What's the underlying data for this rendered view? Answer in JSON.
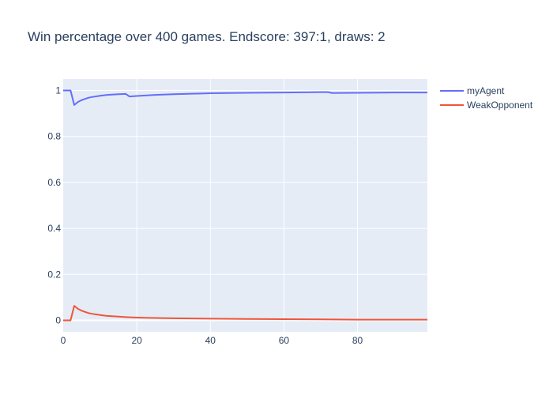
{
  "chart_data": {
    "type": "line",
    "title": "Win percentage over 400 games. Endscore: 397:1, draws: 2",
    "xlabel": "",
    "ylabel": "",
    "xlim": [
      0,
      99
    ],
    "ylim": [
      -0.05,
      1.05
    ],
    "x_ticks": [
      0,
      20,
      40,
      60,
      80
    ],
    "y_ticks": [
      0,
      0.2,
      0.4,
      0.6,
      0.8,
      1
    ],
    "y_tick_labels": [
      "0",
      "0.2",
      "0.4",
      "0.6",
      "0.8",
      "1"
    ],
    "grid": true,
    "legend_position": "top-right",
    "background": "#e5ecf6",
    "series": [
      {
        "name": "myAgent",
        "color": "#636efa",
        "x": [
          0,
          1,
          2,
          3,
          4,
          5,
          6,
          7,
          8,
          10,
          12,
          15,
          17,
          18,
          20,
          25,
          30,
          35,
          40,
          50,
          60,
          66,
          70,
          72,
          73,
          80,
          90,
          99
        ],
        "y": [
          1.0,
          1.0,
          1.0,
          0.937,
          0.95,
          0.958,
          0.964,
          0.969,
          0.972,
          0.977,
          0.981,
          0.984,
          0.985,
          0.974,
          0.976,
          0.981,
          0.984,
          0.986,
          0.988,
          0.99,
          0.991,
          0.992,
          0.993,
          0.993,
          0.989,
          0.99,
          0.991,
          0.991
        ]
      },
      {
        "name": "WeakOpponent",
        "color": "#ef553b",
        "x": [
          0,
          1,
          2,
          3,
          4,
          5,
          6,
          7,
          8,
          10,
          12,
          15,
          17,
          20,
          25,
          30,
          35,
          40,
          50,
          60,
          70,
          80,
          90,
          99
        ],
        "y": [
          0,
          0,
          0,
          0.063,
          0.05,
          0.042,
          0.036,
          0.031,
          0.028,
          0.023,
          0.019,
          0.016,
          0.014,
          0.012,
          0.01,
          0.009,
          0.008,
          0.007,
          0.006,
          0.005,
          0.004,
          0.003,
          0.003,
          0.003
        ]
      }
    ]
  }
}
